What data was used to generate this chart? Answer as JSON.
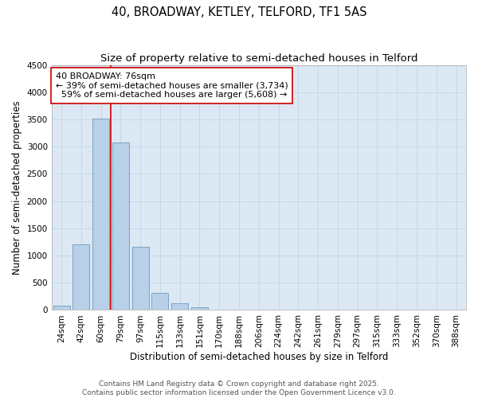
{
  "title_line1": "40, BROADWAY, KETLEY, TELFORD, TF1 5AS",
  "title_line2": "Size of property relative to semi-detached houses in Telford",
  "xlabel": "Distribution of semi-detached houses by size in Telford",
  "ylabel": "Number of semi-detached properties",
  "categories": [
    "24sqm",
    "42sqm",
    "60sqm",
    "79sqm",
    "97sqm",
    "115sqm",
    "133sqm",
    "151sqm",
    "170sqm",
    "188sqm",
    "206sqm",
    "224sqm",
    "242sqm",
    "261sqm",
    "279sqm",
    "297sqm",
    "315sqm",
    "333sqm",
    "352sqm",
    "370sqm",
    "388sqm"
  ],
  "values": [
    80,
    1200,
    3520,
    3080,
    1160,
    320,
    120,
    50,
    0,
    0,
    0,
    0,
    0,
    0,
    0,
    0,
    0,
    0,
    0,
    0,
    0
  ],
  "bar_color": "#b8d0e8",
  "bar_edge_color": "#7099bb",
  "vline_color": "#cc0000",
  "annotation_text": "40 BROADWAY: 76sqm\n← 39% of semi-detached houses are smaller (3,734)\n  59% of semi-detached houses are larger (5,608) →",
  "annotation_box_color": "#ffffff",
  "annotation_box_edge": "#cc0000",
  "ylim": [
    0,
    4500
  ],
  "yticks": [
    0,
    500,
    1000,
    1500,
    2000,
    2500,
    3000,
    3500,
    4000,
    4500
  ],
  "grid_color": "#c8d8e8",
  "background_color": "#dce8f4",
  "footer_line1": "Contains HM Land Registry data © Crown copyright and database right 2025.",
  "footer_line2": "Contains public sector information licensed under the Open Government Licence v3.0.",
  "title_fontsize": 10.5,
  "subtitle_fontsize": 9.5,
  "axis_label_fontsize": 8.5,
  "tick_fontsize": 7.5,
  "annotation_fontsize": 8,
  "footer_fontsize": 6.5
}
